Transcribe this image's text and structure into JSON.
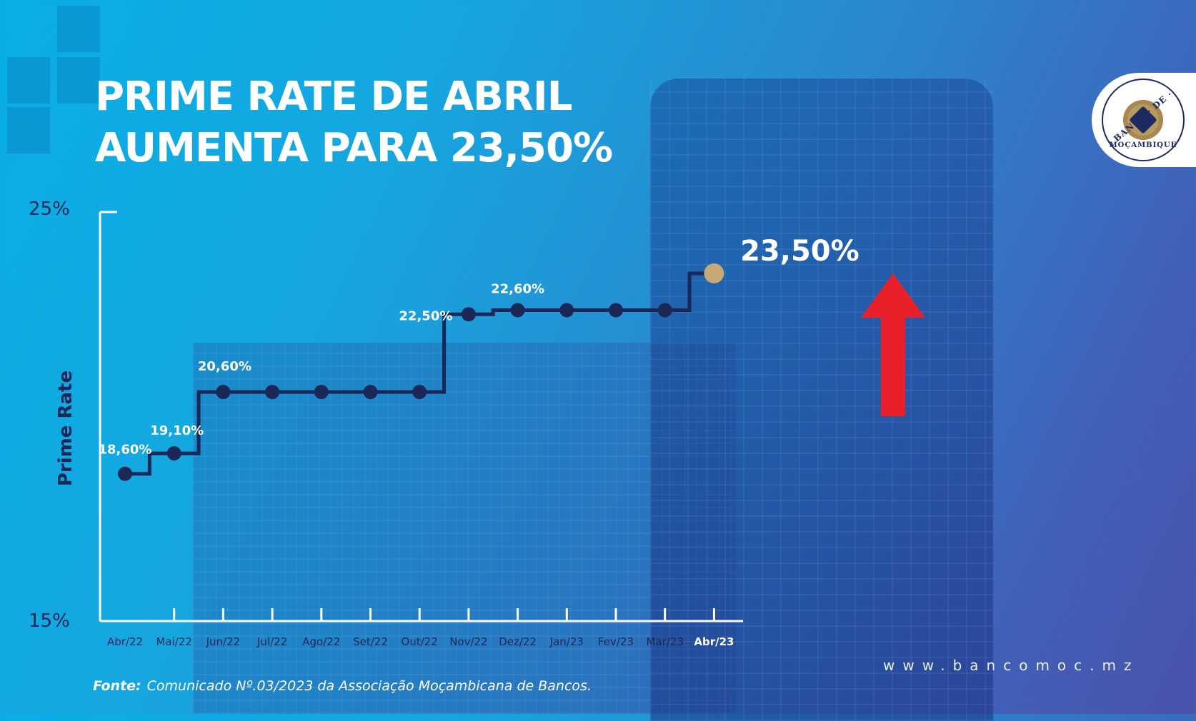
{
  "header": {
    "title_line1": "PRIME RATE DE ABRIL",
    "title_line2": "AUMENTA PARA 23,50%"
  },
  "logo": {
    "top_text": "BANCO · DE ·",
    "bottom_text": "MOÇAMBIQUE"
  },
  "colors": {
    "line": "#1b2756",
    "point": "#1b2756",
    "highlight_point": "#c8a874",
    "arrow": "#e8202a",
    "axis": "#ffffff",
    "ylabel": "#1b2756"
  },
  "chart_data": {
    "type": "line",
    "step": true,
    "ylabel": "Prime Rate",
    "ylim": [
      15,
      25
    ],
    "y_tick_labels": [
      "25%",
      "15%"
    ],
    "categories": [
      "Abr/22",
      "Mai/22",
      "Jun/22",
      "Jul/22",
      "Ago/22",
      "Set/22",
      "Out/22",
      "Nov/22",
      "Dez/22",
      "Jan/23",
      "Fev/23",
      "Mar/23",
      "Abr/23"
    ],
    "values": [
      18.6,
      19.1,
      20.6,
      20.6,
      20.6,
      20.6,
      20.6,
      22.5,
      22.6,
      22.6,
      22.6,
      22.6,
      23.5
    ],
    "data_labels": [
      {
        "index": 0,
        "text": "18,60%"
      },
      {
        "index": 1,
        "text": "19,10%"
      },
      {
        "index": 2,
        "text": "20,60%"
      },
      {
        "index": 7,
        "text": "22,50%"
      },
      {
        "index": 8,
        "text": "22,60%"
      },
      {
        "index": 12,
        "text": "23,50%"
      }
    ],
    "highlight_index": 12,
    "grid": false
  },
  "footer": {
    "source_label": "Fonte:",
    "source_text": "Comunicado Nº.03/2023 da Associação Moçambicana de Bancos.",
    "website": "www.bancomoc.mz"
  }
}
